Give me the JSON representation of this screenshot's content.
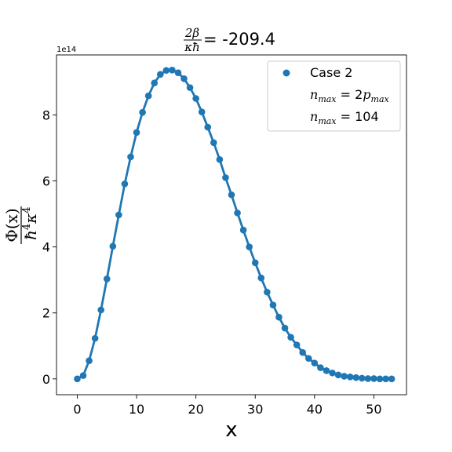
{
  "chart_data": {
    "type": "line",
    "title": {
      "fraction_numerator": "2β",
      "fraction_denominator": "κħ",
      "equals_value": "= -209.4"
    },
    "xlabel": "x",
    "ylabel": {
      "numerator": "Φ(x)",
      "denominator_base": "ħ",
      "denominator_exp1": "4",
      "denominator_mid": "κ",
      "denominator_exp2": "4"
    },
    "y_offset_label": "1e14",
    "xlim": [
      -3.5,
      55.5
    ],
    "ylim": [
      -0.48,
      9.82
    ],
    "xticks": [
      0,
      10,
      20,
      30,
      40,
      50
    ],
    "xtick_labels": [
      "0",
      "10",
      "20",
      "30",
      "40",
      "50"
    ],
    "yticks": [
      0,
      2,
      4,
      6,
      8
    ],
    "ytick_labels": [
      "0",
      "2",
      "4",
      "6",
      "8"
    ],
    "grid": false,
    "legend_position": "top-right",
    "legend": {
      "series_label": "Case 2",
      "line1_base": "n",
      "line1_sub": "max",
      "line1_eq": " = 2",
      "line1_rhs_base": "p",
      "line1_rhs_sub": "max",
      "line2_base": "n",
      "line2_sub": "max",
      "line2_eq": " = 104"
    },
    "series": [
      {
        "name": "Case 2",
        "color": "#1f77b4",
        "x": [
          0,
          1,
          2,
          3,
          4,
          5,
          6,
          7,
          8,
          9,
          10,
          11,
          12,
          13,
          14,
          15,
          16,
          17,
          18,
          19,
          20,
          21,
          22,
          23,
          24,
          25,
          26,
          27,
          28,
          29,
          30,
          31,
          32,
          33,
          34,
          35,
          36,
          37,
          38,
          39,
          40,
          41,
          42,
          43,
          44,
          45,
          46,
          47,
          48,
          49,
          50,
          51,
          52,
          53
        ],
        "y": [
          0.0,
          0.1,
          0.55,
          1.23,
          2.09,
          3.03,
          4.02,
          4.97,
          5.91,
          6.73,
          7.47,
          8.08,
          8.58,
          8.97,
          9.23,
          9.35,
          9.36,
          9.28,
          9.1,
          8.83,
          8.5,
          8.09,
          7.63,
          7.16,
          6.65,
          6.1,
          5.58,
          5.03,
          4.51,
          4.0,
          3.52,
          3.06,
          2.63,
          2.24,
          1.87,
          1.54,
          1.26,
          1.03,
          0.8,
          0.62,
          0.48,
          0.34,
          0.25,
          0.18,
          0.12,
          0.08,
          0.06,
          0.04,
          0.02,
          0.01,
          0.01,
          0.0,
          0.0,
          0.0
        ]
      }
    ]
  }
}
